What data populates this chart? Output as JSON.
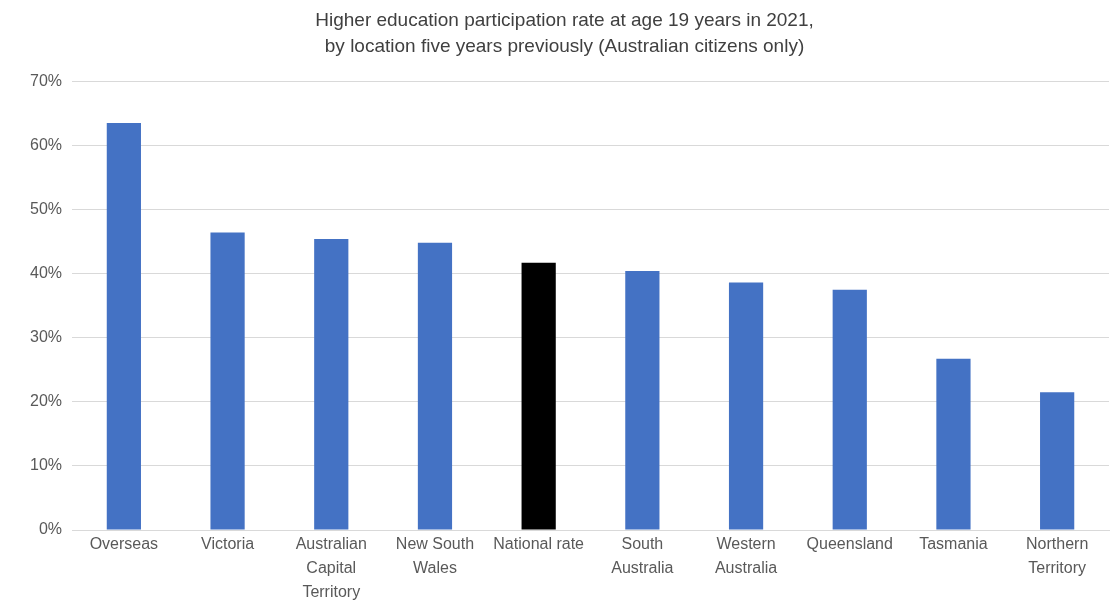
{
  "chart_data": {
    "type": "bar",
    "title": "Higher education participation rate at age 19 years in 2021,\nby location five years previously (Australian citizens only)",
    "categories": [
      "Overseas",
      "Victoria",
      "Australian Capital Territory",
      "New South Wales",
      "National rate",
      "South Australia",
      "Western Australia",
      "Queensland",
      "Tasmania",
      "Northern Territory"
    ],
    "values": [
      63.5,
      46.4,
      45.4,
      44.8,
      41.7,
      40.4,
      38.6,
      37.5,
      26.7,
      21.5
    ],
    "colors": [
      "#4472c4",
      "#4472c4",
      "#4472c4",
      "#4472c4",
      "#000000",
      "#4472c4",
      "#4472c4",
      "#4472c4",
      "#4472c4",
      "#4472c4"
    ],
    "ylim": [
      0,
      70
    ],
    "yticks": [
      {
        "value": 0,
        "label": "0%"
      },
      {
        "value": 10,
        "label": "10%"
      },
      {
        "value": 20,
        "label": "20%"
      },
      {
        "value": 30,
        "label": "30%"
      },
      {
        "value": 40,
        "label": "40%"
      },
      {
        "value": 50,
        "label": "50%"
      },
      {
        "value": 60,
        "label": "60%"
      },
      {
        "value": 70,
        "label": "70%"
      }
    ],
    "grid": "y"
  }
}
